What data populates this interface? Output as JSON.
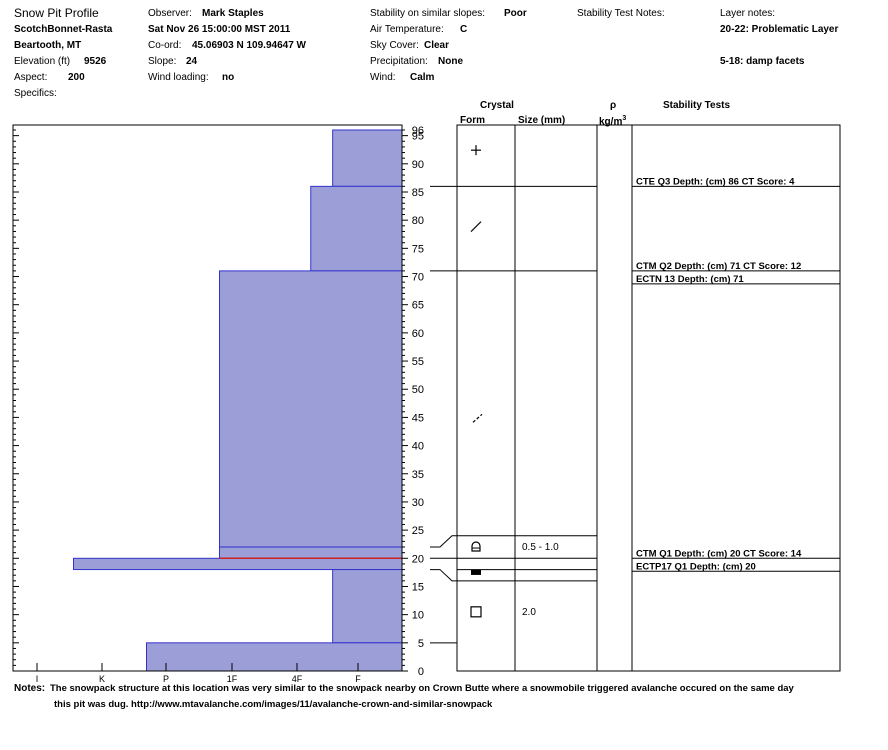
{
  "header": {
    "title": "Snow Pit Profile",
    "location": "ScotchBonnet-Rasta",
    "region": "Beartooth, MT",
    "elevation_label": "Elevation (ft)",
    "elevation_value": "9526",
    "aspect_label": "Aspect:",
    "aspect_value": "200",
    "specifics_label": "Specifics:",
    "observer_label": "Observer:",
    "observer_value": "Mark Staples",
    "datetime": "Sat Nov 26 15:00:00 MST 2011",
    "coord_label": "Co-ord:",
    "coord_value": "45.06903 N 109.94647 W",
    "slope_label": "Slope:",
    "slope_value": "24",
    "wind_loading_label": "Wind loading:",
    "wind_loading_value": "no",
    "stability_label": "Stability on similar slopes:",
    "stability_value": "Poor",
    "air_temp_label": "Air Temperature:",
    "air_temp_value": "C",
    "sky_label": "Sky Cover:",
    "sky_value": "Clear",
    "precip_label": "Precipitation:",
    "precip_value": "None",
    "wind_label": "Wind:",
    "wind_value": "Calm",
    "stability_notes_label": "Stability Test Notes:",
    "layer_notes_label": "Layer notes:",
    "layer_note_1": "20-22: Problematic Layer",
    "layer_note_2": "5-18: damp facets"
  },
  "columns": {
    "crystal": "Crystal",
    "form": "Form",
    "size": "Size (mm)",
    "rho": "ρ",
    "density_unit_base": "kg/m",
    "density_unit_exp": "3",
    "stability_tests": "Stability Tests"
  },
  "chart_data": {
    "type": "bar",
    "orientation": "horizontal",
    "y_axis": {
      "label": "",
      "min": 0,
      "max": 96,
      "ticks": [
        0,
        5,
        10,
        15,
        20,
        25,
        30,
        35,
        40,
        45,
        50,
        55,
        60,
        65,
        70,
        75,
        80,
        85,
        90,
        95
      ],
      "top_label": "96"
    },
    "x_axis": {
      "label": "",
      "categories": [
        "I",
        "K",
        "P",
        "1F",
        "4F",
        "F"
      ],
      "direction": "reversed"
    },
    "layers": [
      {
        "bottom": 86,
        "top": 96,
        "hardness_index": 0.95
      },
      {
        "bottom": 71,
        "top": 86,
        "hardness_index": 1.25
      },
      {
        "bottom": 22,
        "top": 71,
        "hardness_index": 2.5
      },
      {
        "bottom": 20,
        "top": 22,
        "hardness_index": 2.5
      },
      {
        "bottom": 18,
        "top": 20,
        "hardness_index": 4.5
      },
      {
        "bottom": 5,
        "top": 18,
        "hardness_index": 0.95
      },
      {
        "bottom": 0,
        "top": 5,
        "hardness_index": 3.5
      }
    ],
    "red_line_depth": 20,
    "crystal_rows": [
      {
        "depth_top": 96,
        "depth_bottom": 86,
        "symbol": "+",
        "size": ""
      },
      {
        "depth_top": 86,
        "depth_bottom": 71,
        "symbol": "/",
        "size": ""
      },
      {
        "depth_top": 71,
        "depth_bottom": 24,
        "symbol": "./",
        "size": ""
      },
      {
        "depth_top": 24,
        "depth_bottom": 20,
        "symbol": "cup",
        "size": "0.5 - 1.0"
      },
      {
        "depth_top": 20,
        "depth_bottom": 18,
        "symbol": "block",
        "size": ""
      },
      {
        "depth_top": 16,
        "depth_bottom": 5,
        "symbol": "square",
        "size": "2.0"
      }
    ],
    "stability_tests": [
      {
        "depth": 86,
        "text": "CTE Q3 Depth: (cm) 86 CT Score: 4"
      },
      {
        "depth": 71,
        "text": "CTM Q2 Depth: (cm) 71 CT Score: 12"
      },
      {
        "depth": 71,
        "text": "ECTN 13   Depth: (cm) 71"
      },
      {
        "depth": 20,
        "text": "CTM Q1 Depth: (cm) 20 CT Score: 14"
      },
      {
        "depth": 20,
        "text": "ECTP17 Q1 Depth: (cm) 20"
      }
    ]
  },
  "notes": {
    "label": "Notes:",
    "line1": "The snowpack structure at this location was very similar to the snowpack nearby on Crown Butte where a snowmobile triggered avalanche occured on the same day",
    "line2": "this pit was dug. http://www.mtavalanche.com/images/11/avalanche-crown-and-similar-snowpack"
  },
  "colors": {
    "fill": "#9c9ed8",
    "edge": "#3333cc",
    "red": "#cc2222"
  }
}
